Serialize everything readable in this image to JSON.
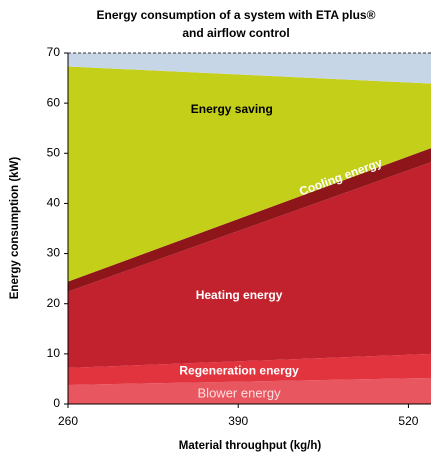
{
  "chart_data": {
    "type": "stacked_area",
    "title": [
      "Energy consumption of a system with ETA plus®",
      "and airflow control"
    ],
    "x_label": "Material throughput (kg/h)",
    "y_label": "Energy consumption (kW)",
    "x": [
      260,
      538
    ],
    "series": [
      {
        "name": "Blower energy",
        "color": "#e8565f",
        "values": [
          3.8,
          5.2
        ]
      },
      {
        "name": "Regeneration energy",
        "color": "#e2343f",
        "values": [
          3.4,
          4.8
        ]
      },
      {
        "name": "Heating energy",
        "color": "#c1222e",
        "values": [
          15.2,
          38.3
        ]
      },
      {
        "name": "Cooling energy",
        "color": "#8e1519",
        "values": [
          2,
          2.8
        ]
      },
      {
        "name": "Energy saving",
        "color": "#c4cf1a",
        "values": [
          42.9,
          12.8
        ]
      },
      {
        "color": "#c7d6e6",
        "values": [
          2.7,
          6.1
        ]
      }
    ],
    "xlim": [
      260,
      538
    ],
    "xticks": [
      260,
      390,
      520
    ],
    "ylim": [
      0,
      70
    ],
    "yticks": [
      0,
      10,
      20,
      30,
      40,
      50,
      60,
      70
    ]
  }
}
